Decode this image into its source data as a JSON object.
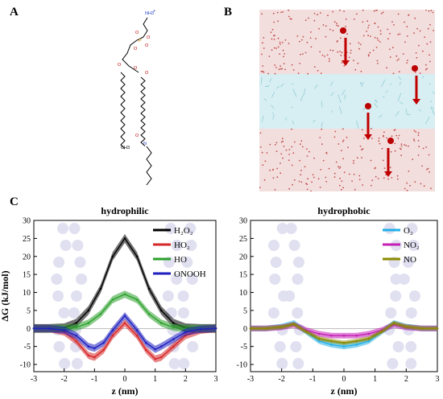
{
  "panels": {
    "a": "A",
    "b": "B",
    "c": "C"
  },
  "molecule": {
    "atom_labels": [
      "NH3",
      "+",
      "O",
      "P",
      "O",
      "O",
      "O",
      "O",
      "O",
      "O",
      "O",
      "N",
      "CH3"
    ]
  },
  "colors": {
    "water": "#c0504d",
    "membrane": "#a9dce3",
    "arrow": "#c00000",
    "h2o2": "#000000",
    "ho2": "#d62728",
    "ho": "#2ca02c",
    "onooh": "#1f1fbf",
    "o2": "#22aee6",
    "no2": "#c41fb5",
    "no": "#8a8a00"
  },
  "chart_data": [
    {
      "type": "line",
      "title": "hydrophilic",
      "xlabel": "z (nm)",
      "ylabel": "ΔG (kJ/mol)",
      "xlim": [
        -3,
        3
      ],
      "ylim": [
        -12,
        30
      ],
      "xticks": [
        -3,
        -2,
        -1,
        0,
        1,
        2,
        3
      ],
      "yticks": [
        -10,
        -5,
        0,
        5,
        10,
        15,
        20,
        25,
        30
      ],
      "legend": "top-right",
      "series": [
        {
          "name": "H₂O₂",
          "color": "#000000",
          "band": 1.2,
          "x": [
            -3,
            -2.5,
            -2,
            -1.6,
            -1.2,
            -0.8,
            -0.4,
            0,
            0.4,
            0.8,
            1.2,
            1.6,
            2,
            2.5,
            3
          ],
          "y": [
            0,
            0,
            0.2,
            1.5,
            5,
            11,
            20,
            25,
            20,
            11,
            5,
            1.5,
            0.2,
            0,
            0
          ]
        },
        {
          "name": "HO₂",
          "color": "#d62728",
          "band": 1.0,
          "x": [
            -3,
            -2.5,
            -2,
            -1.6,
            -1.2,
            -1.0,
            -0.7,
            -0.4,
            0,
            0.4,
            0.7,
            1.0,
            1.2,
            1.6,
            2,
            2.5,
            3
          ],
          "y": [
            0,
            0,
            -1,
            -3.5,
            -7.5,
            -8,
            -6,
            -2,
            1.5,
            -2,
            -6,
            -8.5,
            -8,
            -5,
            -2,
            -0.5,
            0
          ]
        },
        {
          "name": "HO",
          "color": "#2ca02c",
          "band": 1.0,
          "x": [
            -3,
            -2.5,
            -2,
            -1.6,
            -1.2,
            -0.8,
            -0.4,
            0,
            0.4,
            0.8,
            1.2,
            1.6,
            2,
            2.5,
            3
          ],
          "y": [
            0,
            0,
            0,
            0.3,
            1.5,
            4,
            8,
            9.5,
            8,
            4,
            1.5,
            0.3,
            0,
            0,
            0
          ]
        },
        {
          "name": "ONOOH",
          "color": "#1f1fbf",
          "band": 1.0,
          "x": [
            -3,
            -2.5,
            -2,
            -1.6,
            -1.2,
            -1.0,
            -0.7,
            -0.4,
            0,
            0.4,
            0.7,
            1.0,
            1.2,
            1.6,
            2,
            2.5,
            3
          ],
          "y": [
            0,
            0,
            -0.5,
            -2,
            -5,
            -5.5,
            -4,
            -0.5,
            3.5,
            -0.5,
            -4,
            -5.8,
            -5,
            -3,
            -1,
            -0.2,
            0
          ]
        }
      ]
    },
    {
      "type": "line",
      "title": "hydrophobic",
      "xlabel": "z (nm)",
      "ylabel": "",
      "xlim": [
        -3,
        3
      ],
      "ylim": [
        -12,
        30
      ],
      "xticks": [
        -3,
        -2,
        -1,
        0,
        1,
        2,
        3
      ],
      "yticks": [
        -10,
        -5,
        0,
        5,
        10,
        15,
        20,
        25,
        30
      ],
      "legend": "top-right",
      "series": [
        {
          "name": "O₂",
          "color": "#22aee6",
          "band": 0.8,
          "x": [
            -3,
            -2.5,
            -2,
            -1.6,
            -1.2,
            -0.8,
            -0.4,
            0,
            0.4,
            0.8,
            1.2,
            1.6,
            2,
            2.5,
            3
          ],
          "y": [
            0,
            0,
            0.5,
            1.5,
            -1,
            -3.5,
            -4.5,
            -5,
            -4.5,
            -3.5,
            -1,
            1.5,
            0.5,
            0,
            0
          ]
        },
        {
          "name": "NO₂",
          "color": "#c41fb5",
          "band": 0.8,
          "x": [
            -3,
            -2.5,
            -2,
            -1.6,
            -1.2,
            -0.8,
            -0.4,
            0,
            0.4,
            0.8,
            1.2,
            1.6,
            2,
            2.5,
            3
          ],
          "y": [
            0,
            0,
            0.3,
            1.0,
            -0.5,
            -1.5,
            -2,
            -2,
            -2,
            -1.5,
            -0.5,
            1.0,
            0.3,
            0,
            0
          ]
        },
        {
          "name": "NO",
          "color": "#8a8a00",
          "band": 0.6,
          "x": [
            -3,
            -2.5,
            -2,
            -1.6,
            -1.2,
            -0.8,
            -0.4,
            0,
            0.4,
            0.8,
            1.2,
            1.6,
            2,
            2.5,
            3
          ],
          "y": [
            0,
            0,
            0.4,
            1.2,
            -1,
            -2.8,
            -3.5,
            -4,
            -3.5,
            -2.8,
            -1,
            1.5,
            0.5,
            0,
            0
          ]
        }
      ]
    }
  ]
}
